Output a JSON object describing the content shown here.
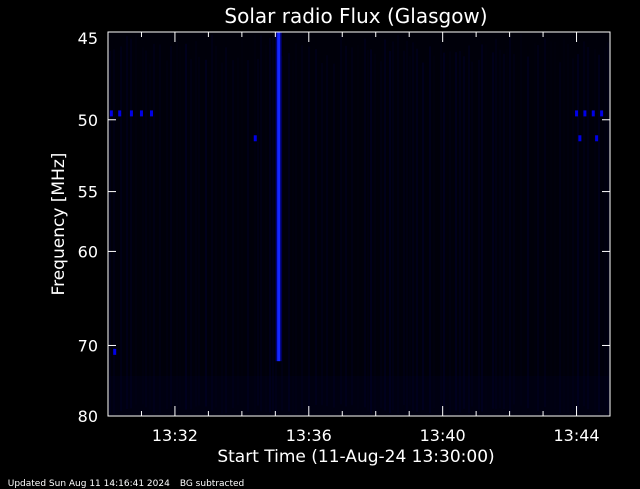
{
  "chart_data": {
    "type": "heatmap",
    "title": "Solar radio Flux (Glasgow)",
    "xlabel": "Start Time (11-Aug-24 13:30:00)",
    "ylabel": "Frequency [MHz]",
    "x_range_minutes": [
      0,
      15
    ],
    "x_tick_minutes": [
      2,
      6,
      10,
      14
    ],
    "x_tick_labels": [
      "13:32",
      "13:36",
      "13:40",
      "13:44"
    ],
    "y_range": [
      45,
      80
    ],
    "y_scale": "reciprocal",
    "y_ticks": [
      45,
      50,
      55,
      60,
      70,
      80
    ],
    "y_tick_labels": [
      "45",
      "50",
      "55",
      "60",
      "70",
      "80"
    ],
    "colormap": [
      "#000000",
      "#000010",
      "#0000ff"
    ],
    "features": [
      {
        "kind": "burst",
        "minute": 5.1,
        "freq_start": 45,
        "freq_end": 72,
        "intensity": 1.0
      },
      {
        "kind": "rfi_dots",
        "freq": 49.6,
        "minutes": [
          0.1,
          0.35,
          0.7,
          1.0,
          1.3,
          14.0,
          14.25,
          14.5,
          14.75
        ],
        "intensity": 0.9
      },
      {
        "kind": "rfi_dots",
        "freq": 51.2,
        "minutes": [
          4.4,
          14.1,
          14.6
        ],
        "intensity": 0.85
      },
      {
        "kind": "rfi_dots",
        "freq": 70.8,
        "minutes": [
          0.2
        ],
        "intensity": 0.9
      }
    ]
  },
  "footer": {
    "updated": "Updated Sun Aug 11 14:16:41 2024",
    "note": "BG subtracted"
  },
  "colors": {
    "background": "#000000",
    "axes": "#ffffff",
    "signal": "#0000ff"
  }
}
